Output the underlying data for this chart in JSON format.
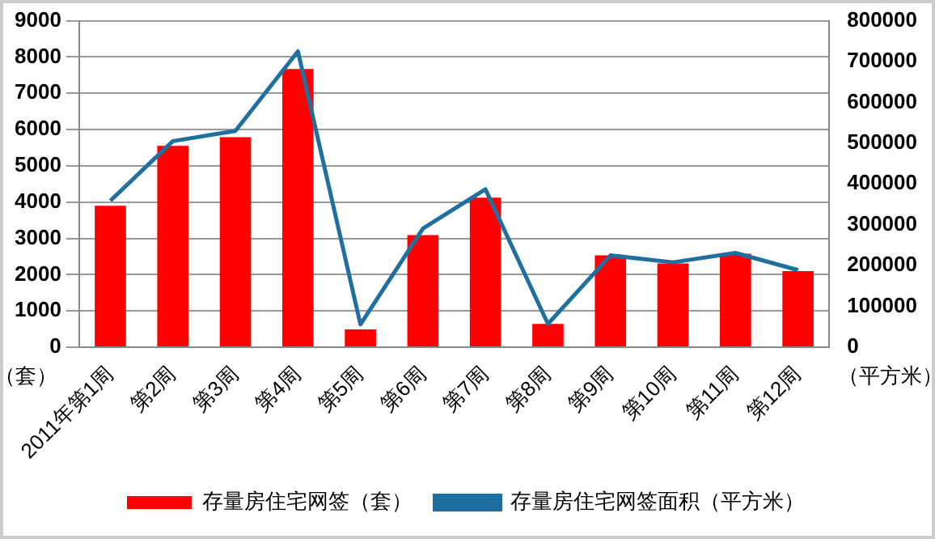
{
  "chart_data": {
    "type": "bar",
    "categories": [
      "2011年第1周",
      "第2周",
      "第3周",
      "第4周",
      "第5周",
      "第6周",
      "第7周",
      "第8周",
      "第9周",
      "第10周",
      "第11周",
      "第12周"
    ],
    "series": [
      {
        "name": "存量房住宅网签（套）",
        "color": "#ff0000",
        "values": [
          3900,
          5550,
          5790,
          7670,
          490,
          3090,
          4120,
          640,
          2530,
          2310,
          2580,
          2100
        ]
      },
      {
        "name": "存量房住宅网签面积（平方米）",
        "type": "line",
        "axis": "y2",
        "color": "#1f6fa0",
        "values": [
          359000,
          505000,
          530000,
          725000,
          56000,
          291000,
          387000,
          57000,
          225000,
          208000,
          231000,
          189000
        ]
      }
    ],
    "ylabel": "（套）",
    "y2label": "（平方米）",
    "ylim": [
      0,
      9000
    ],
    "yticks": [
      0,
      1000,
      2000,
      3000,
      4000,
      5000,
      6000,
      7000,
      8000,
      9000
    ],
    "y2lim": [
      0,
      800000
    ],
    "y2ticks": [
      0,
      100000,
      200000,
      300000,
      400000,
      500000,
      600000,
      700000,
      800000
    ],
    "grid": "y",
    "legend": "bottom",
    "marker": "none",
    "line_style": "solid"
  }
}
